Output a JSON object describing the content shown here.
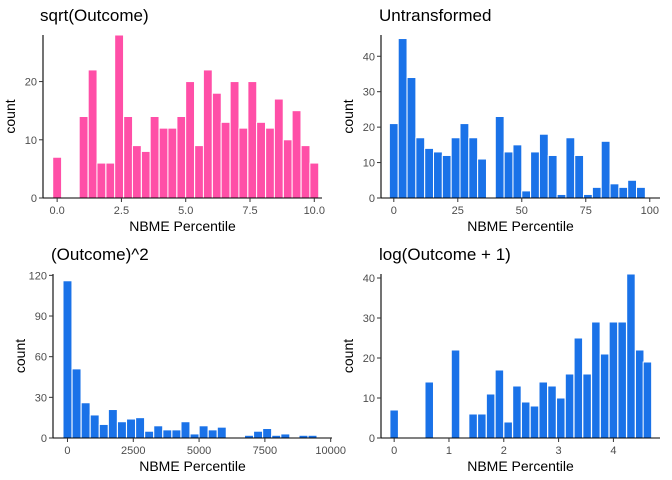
{
  "chart_data": [
    {
      "type": "bar",
      "title": "sqrt(Outcome)",
      "xlabel": "NBME Percentile",
      "ylabel": "count",
      "fill": "#ff4fa7",
      "xlim": [
        -0.55,
        10.3
      ],
      "ylim": [
        0,
        28
      ],
      "xticks": [
        0,
        2.5,
        5,
        7.5,
        10
      ],
      "xtick_labels": [
        "0.0",
        "2.5",
        "5.0",
        "7.5",
        "10.0"
      ],
      "yticks": [
        0,
        10,
        20
      ],
      "ytick_labels": [
        "0",
        "10",
        "20"
      ],
      "bin_width": 0.345,
      "bins": [
        {
          "x": 0.0,
          "count": 7
        },
        {
          "x": 1.03,
          "count": 14
        },
        {
          "x": 1.38,
          "count": 22
        },
        {
          "x": 1.72,
          "count": 6
        },
        {
          "x": 2.07,
          "count": 6
        },
        {
          "x": 2.41,
          "count": 28
        },
        {
          "x": 2.76,
          "count": 14
        },
        {
          "x": 3.1,
          "count": 9
        },
        {
          "x": 3.45,
          "count": 8
        },
        {
          "x": 3.79,
          "count": 14
        },
        {
          "x": 4.14,
          "count": 12
        },
        {
          "x": 4.48,
          "count": 12
        },
        {
          "x": 4.83,
          "count": 14
        },
        {
          "x": 5.17,
          "count": 20
        },
        {
          "x": 5.52,
          "count": 9
        },
        {
          "x": 5.86,
          "count": 22
        },
        {
          "x": 6.21,
          "count": 18
        },
        {
          "x": 6.55,
          "count": 13
        },
        {
          "x": 6.9,
          "count": 20
        },
        {
          "x": 7.24,
          "count": 12
        },
        {
          "x": 7.59,
          "count": 20
        },
        {
          "x": 7.93,
          "count": 13
        },
        {
          "x": 8.28,
          "count": 12
        },
        {
          "x": 8.62,
          "count": 17
        },
        {
          "x": 8.97,
          "count": 10
        },
        {
          "x": 9.31,
          "count": 15
        },
        {
          "x": 9.66,
          "count": 9
        },
        {
          "x": 10.0,
          "count": 6
        }
      ]
    },
    {
      "type": "bar",
      "title": "Untransformed",
      "xlabel": "NBME Percentile",
      "ylabel": "count",
      "fill": "#1a72e8",
      "xlim": [
        -5,
        104
      ],
      "ylim": [
        0,
        46
      ],
      "xticks": [
        0,
        25,
        50,
        75,
        100
      ],
      "xtick_labels": [
        "0",
        "25",
        "50",
        "75",
        "100"
      ],
      "yticks": [
        0,
        10,
        20,
        30,
        40
      ],
      "ytick_labels": [
        "0",
        "10",
        "20",
        "30",
        "40"
      ],
      "bin_width": 3.45,
      "bins": [
        {
          "x": 0.0,
          "count": 21
        },
        {
          "x": 3.45,
          "count": 45
        },
        {
          "x": 6.9,
          "count": 34
        },
        {
          "x": 10.34,
          "count": 17
        },
        {
          "x": 13.79,
          "count": 14
        },
        {
          "x": 17.24,
          "count": 13
        },
        {
          "x": 20.69,
          "count": 12
        },
        {
          "x": 24.14,
          "count": 17
        },
        {
          "x": 27.59,
          "count": 21
        },
        {
          "x": 31.03,
          "count": 17
        },
        {
          "x": 34.48,
          "count": 11
        },
        {
          "x": 41.38,
          "count": 23
        },
        {
          "x": 44.83,
          "count": 13
        },
        {
          "x": 48.28,
          "count": 15
        },
        {
          "x": 51.72,
          "count": 2
        },
        {
          "x": 55.17,
          "count": 13
        },
        {
          "x": 58.62,
          "count": 18
        },
        {
          "x": 62.07,
          "count": 12
        },
        {
          "x": 65.52,
          "count": 1
        },
        {
          "x": 68.97,
          "count": 17
        },
        {
          "x": 72.41,
          "count": 12
        },
        {
          "x": 75.86,
          "count": 1
        },
        {
          "x": 79.31,
          "count": 3
        },
        {
          "x": 82.76,
          "count": 16
        },
        {
          "x": 86.21,
          "count": 4
        },
        {
          "x": 89.66,
          "count": 3
        },
        {
          "x": 93.1,
          "count": 5
        },
        {
          "x": 96.55,
          "count": 3
        }
      ]
    },
    {
      "type": "bar",
      "title": "(Outcome)^2",
      "xlabel": "NBME Percentile",
      "ylabel": "count",
      "fill": "#1a72e8",
      "xlim": [
        -550,
        10050
      ],
      "ylim": [
        0,
        121
      ],
      "xticks": [
        0,
        2500,
        5000,
        7500,
        10000
      ],
      "xtick_labels": [
        "0",
        "2500",
        "5000",
        "7500",
        "10000"
      ],
      "yticks": [
        0,
        30,
        60,
        90,
        120
      ],
      "ytick_labels": [
        "0",
        "30",
        "60",
        "90",
        "120"
      ],
      "bin_width": 340,
      "bins": [
        {
          "x": 0,
          "count": 116
        },
        {
          "x": 345,
          "count": 51
        },
        {
          "x": 690,
          "count": 26
        },
        {
          "x": 1034,
          "count": 17
        },
        {
          "x": 1379,
          "count": 10
        },
        {
          "x": 1724,
          "count": 21
        },
        {
          "x": 2069,
          "count": 12
        },
        {
          "x": 2414,
          "count": 14
        },
        {
          "x": 2759,
          "count": 15
        },
        {
          "x": 3103,
          "count": 5
        },
        {
          "x": 3448,
          "count": 9
        },
        {
          "x": 3793,
          "count": 6
        },
        {
          "x": 4138,
          "count": 6
        },
        {
          "x": 4483,
          "count": 12
        },
        {
          "x": 4828,
          "count": 3
        },
        {
          "x": 5172,
          "count": 9
        },
        {
          "x": 5517,
          "count": 6
        },
        {
          "x": 5862,
          "count": 8
        },
        {
          "x": 6897,
          "count": 2
        },
        {
          "x": 7241,
          "count": 5
        },
        {
          "x": 7586,
          "count": 7
        },
        {
          "x": 7931,
          "count": 2
        },
        {
          "x": 8276,
          "count": 3
        },
        {
          "x": 8966,
          "count": 2
        },
        {
          "x": 9310,
          "count": 2
        }
      ]
    },
    {
      "type": "bar",
      "title": "log(Outcome + 1)",
      "xlabel": "NBME Percentile",
      "ylabel": "count",
      "fill": "#1a72e8",
      "xlim": [
        -0.24,
        4.85
      ],
      "ylim": [
        0,
        41
      ],
      "xticks": [
        0,
        1,
        2,
        3,
        4
      ],
      "xtick_labels": [
        "0",
        "1",
        "2",
        "3",
        "4"
      ],
      "yticks": [
        0,
        10,
        20,
        30,
        40
      ],
      "ytick_labels": [
        "0",
        "10",
        "20",
        "30",
        "40"
      ],
      "bin_width": 0.155,
      "bins": [
        {
          "x": 0.0,
          "count": 7
        },
        {
          "x": 0.64,
          "count": 14
        },
        {
          "x": 1.12,
          "count": 22
        },
        {
          "x": 1.44,
          "count": 6
        },
        {
          "x": 1.6,
          "count": 6
        },
        {
          "x": 1.76,
          "count": 11
        },
        {
          "x": 1.92,
          "count": 17
        },
        {
          "x": 2.08,
          "count": 4
        },
        {
          "x": 2.24,
          "count": 13
        },
        {
          "x": 2.4,
          "count": 9
        },
        {
          "x": 2.56,
          "count": 8
        },
        {
          "x": 2.72,
          "count": 14
        },
        {
          "x": 2.88,
          "count": 13
        },
        {
          "x": 3.04,
          "count": 10
        },
        {
          "x": 3.2,
          "count": 16
        },
        {
          "x": 3.36,
          "count": 25
        },
        {
          "x": 3.52,
          "count": 16
        },
        {
          "x": 3.68,
          "count": 29
        },
        {
          "x": 3.84,
          "count": 21
        },
        {
          "x": 4.0,
          "count": 29
        },
        {
          "x": 4.16,
          "count": 29
        },
        {
          "x": 4.32,
          "count": 41
        },
        {
          "x": 4.48,
          "count": 22
        },
        {
          "x": 4.62,
          "count": 19
        }
      ]
    }
  ]
}
